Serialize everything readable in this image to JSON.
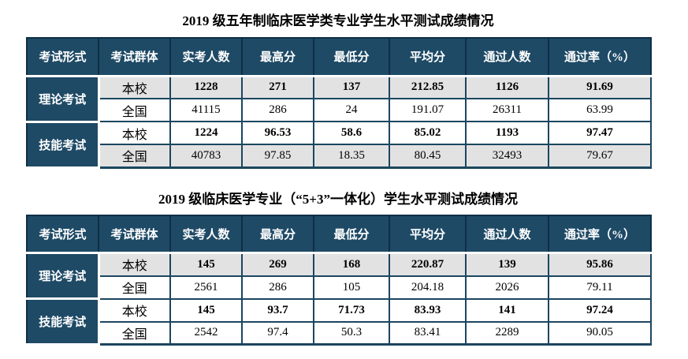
{
  "colors": {
    "header_fill": "#1e4a66",
    "cell_border": "#1b4660",
    "header_border": "#0e2f46",
    "shaded_row": "#e2e2e2",
    "header_text": "#ffffff",
    "body_text": "#000000",
    "page_background": "#ffffff"
  },
  "tables": [
    {
      "title": "2019 级五年制临床医学类专业学生水平测试成绩情况",
      "headers": [
        "考试形式",
        "考试群体",
        "实考人数",
        "最高分",
        "最低分",
        "平均分",
        "通过人数",
        "通过率（%）"
      ],
      "groups": [
        {
          "form": "理论考试",
          "rows": [
            {
              "cohort": "本校",
              "values": [
                "1228",
                "271",
                "137",
                "212.85",
                "1126",
                "91.69"
              ]
            },
            {
              "cohort": "全国",
              "values": [
                "41115",
                "286",
                "24",
                "191.07",
                "26311",
                "63.99"
              ]
            }
          ]
        },
        {
          "form": "技能考试",
          "rows": [
            {
              "cohort": "本校",
              "values": [
                "1224",
                "96.53",
                "58.6",
                "85.02",
                "1193",
                "97.47"
              ]
            },
            {
              "cohort": "全国",
              "values": [
                "40783",
                "97.85",
                "18.35",
                "80.45",
                "32493",
                "79.67"
              ]
            }
          ]
        }
      ]
    },
    {
      "title": "2019 级临床医学专业（“5+3”一体化）学生水平测试成绩情况",
      "headers": [
        "考试形式",
        "考试群体",
        "实考人数",
        "最高分",
        "最低分",
        "平均分",
        "通过人数",
        "通过率（%）"
      ],
      "groups": [
        {
          "form": "理论考试",
          "rows": [
            {
              "cohort": "本校",
              "values": [
                "145",
                "269",
                "168",
                "220.87",
                "139",
                "95.86"
              ]
            },
            {
              "cohort": "全国",
              "values": [
                "2561",
                "286",
                "105",
                "204.18",
                "2026",
                "79.11"
              ]
            }
          ]
        },
        {
          "form": "技能考试",
          "rows": [
            {
              "cohort": "本校",
              "values": [
                "145",
                "93.7",
                "71.73",
                "83.93",
                "141",
                "97.24"
              ]
            },
            {
              "cohort": "全国",
              "values": [
                "2542",
                "97.4",
                "50.3",
                "83.41",
                "2289",
                "90.05"
              ]
            }
          ]
        }
      ]
    }
  ]
}
